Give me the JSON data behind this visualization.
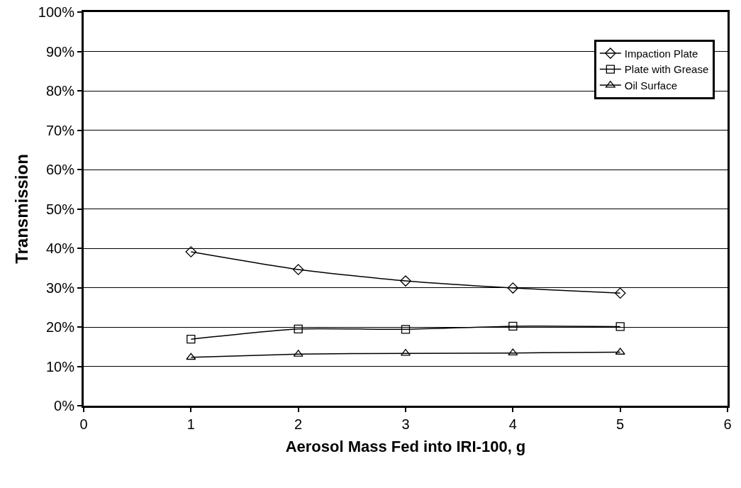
{
  "chart_data": {
    "type": "line",
    "xlabel": "Aerosol Mass Fed into IRI-100, g",
    "ylabel": "Transmission",
    "x": [
      1,
      2,
      3,
      4,
      5
    ],
    "series": [
      {
        "name": "Impaction Plate",
        "color": "#000000",
        "marker": "diamond",
        "values": [
          39.1,
          34.6,
          31.7,
          29.9,
          28.6
        ]
      },
      {
        "name": "Plate with Grease",
        "color": "#000000",
        "marker": "square",
        "values": [
          16.9,
          19.5,
          19.4,
          20.2,
          20.1
        ]
      },
      {
        "name": "Oil Surface",
        "color": "#000000",
        "marker": "triangle",
        "values": [
          12.3,
          13.1,
          13.3,
          13.4,
          13.6
        ]
      }
    ],
    "xlim": [
      0,
      6
    ],
    "xticks": [
      0,
      1,
      2,
      3,
      4,
      5,
      6
    ],
    "ylim": [
      0,
      100
    ],
    "yticks": [
      {
        "value": 0,
        "label": "0%"
      },
      {
        "value": 10,
        "label": "10%"
      },
      {
        "value": 20,
        "label": "20%"
      },
      {
        "value": 30,
        "label": "30%"
      },
      {
        "value": 40,
        "label": "40%"
      },
      {
        "value": 50,
        "label": "50%"
      },
      {
        "value": 60,
        "label": "60%"
      },
      {
        "value": 70,
        "label": "70%"
      },
      {
        "value": 80,
        "label": "80%"
      },
      {
        "value": 90,
        "label": "90%"
      },
      {
        "value": 100,
        "label": "100%"
      }
    ],
    "grid": "y",
    "legend": "top right",
    "line_style": "solid"
  }
}
